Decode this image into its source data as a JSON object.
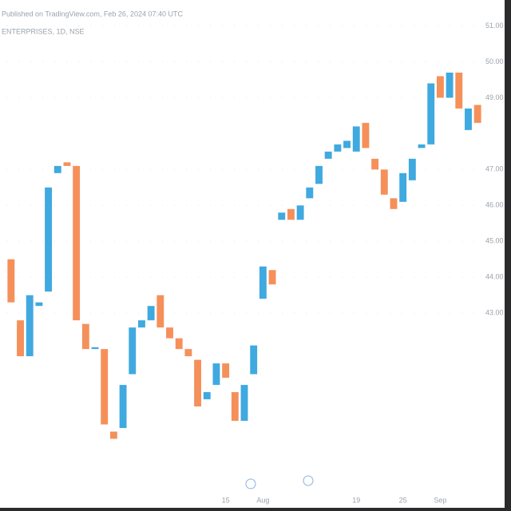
{
  "chart_data": {
    "type": "candlestick",
    "title": "Published on TradingView.com, Feb 26, 2024 07:40 UTC",
    "subtitle": "ENTERPRISES, 1D, NSE",
    "categories": [
      null,
      null,
      null,
      null,
      null,
      null,
      null,
      null,
      null,
      null,
      null,
      null,
      null,
      null,
      null,
      null,
      null,
      null,
      null,
      null,
      null,
      null,
      null,
      "15",
      null,
      null,
      null,
      "Aug",
      null,
      null,
      null,
      null,
      null,
      null,
      null,
      null,
      null,
      "19",
      null,
      null,
      null,
      null,
      "25",
      null,
      null,
      null,
      "Sep",
      null,
      null,
      null,
      null
    ],
    "series": [
      {
        "name": "ENTERPRISES",
        "up_color": "#3fa9e0",
        "down_color": "#f5905a",
        "open": [
          44.5,
          42.8,
          41.8,
          43.2,
          43.6,
          46.9,
          47.2,
          47.1,
          42.7,
          42.0,
          42.0,
          39.7,
          39.8,
          41.3,
          42.6,
          42.8,
          43.5,
          42.6,
          42.3,
          42.0,
          41.7,
          40.6,
          41.0,
          41.6,
          40.8,
          40.0,
          41.3,
          43.4,
          44.2,
          45.6,
          45.9,
          45.6,
          46.2,
          46.6,
          47.3,
          47.5,
          47.6,
          47.5,
          48.3,
          47.3,
          47.0,
          46.2,
          46.1,
          46.7,
          47.6,
          47.7,
          49.6,
          49.0,
          49.7,
          48.1,
          48.8
        ],
        "close": [
          43.3,
          41.8,
          43.5,
          43.3,
          46.5,
          47.1,
          47.1,
          42.8,
          42.0,
          42.05,
          39.9,
          39.5,
          41.0,
          42.6,
          42.8,
          43.2,
          42.6,
          42.3,
          42.0,
          41.8,
          40.4,
          40.8,
          41.6,
          41.2,
          40.0,
          41.0,
          42.1,
          44.3,
          43.8,
          45.8,
          45.6,
          46.0,
          46.5,
          47.1,
          47.5,
          47.7,
          47.8,
          48.2,
          47.6,
          47.0,
          46.3,
          45.9,
          46.9,
          47.3,
          47.7,
          49.4,
          49.0,
          49.7,
          48.7,
          48.7,
          48.3
        ]
      }
    ],
    "ylim": [
      38,
      51.5
    ],
    "yticks": [
      {
        "value": 43,
        "label": "43.00"
      },
      {
        "value": 44,
        "label": "44.00"
      },
      {
        "value": 45,
        "label": "45.00"
      },
      {
        "value": 46,
        "label": "46.00"
      },
      {
        "value": 47,
        "label": "47.00"
      },
      {
        "value": 49,
        "label": "49.00"
      },
      {
        "value": 50,
        "label": "50.00"
      },
      {
        "value": 51,
        "label": "51.00"
      }
    ],
    "grid": true
  }
}
